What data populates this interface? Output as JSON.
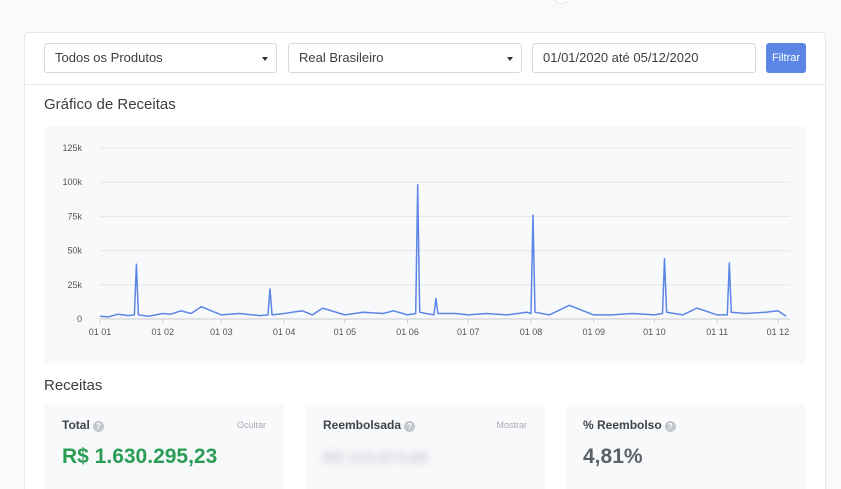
{
  "filters": {
    "product_select": "Todos os Produtos",
    "currency_select": "Real Brasileiro",
    "date_range": "01/01/2020 até 05/12/2020",
    "filter_button": "Filtrar"
  },
  "revenue_chart": {
    "heading": "Gráfico de Receitas"
  },
  "chart_data": {
    "type": "line",
    "title": "",
    "xlabel": "",
    "ylabel": "",
    "ylim": [
      0,
      125000
    ],
    "yticks": [
      0,
      25000,
      50000,
      75000,
      100000,
      125000
    ],
    "ytick_labels": [
      "0",
      "25k",
      "50k",
      "75k",
      "100k",
      "125k"
    ],
    "xtick_labels": [
      "01 01",
      "01 02",
      "01 03",
      "01 04",
      "01 05",
      "01 06",
      "01 07",
      "01 08",
      "01 09",
      "01 10",
      "01 11",
      "01 12"
    ],
    "xtick_dates": [
      "2020-01-01",
      "2020-02-01",
      "2020-03-01",
      "2020-04-01",
      "2020-05-01",
      "2020-06-01",
      "2020-07-01",
      "2020-08-01",
      "2020-09-01",
      "2020-10-01",
      "2020-11-01",
      "2020-12-01"
    ],
    "grid": true,
    "color": "#5b86e5",
    "series": [
      {
        "x": [
          "2020-01-01",
          "2020-01-05",
          "2020-01-10",
          "2020-01-15",
          "2020-01-18",
          "2020-01-19",
          "2020-01-20",
          "2020-01-25",
          "2020-02-01",
          "2020-02-05",
          "2020-02-10",
          "2020-02-15",
          "2020-02-20",
          "2020-03-01",
          "2020-03-10",
          "2020-03-20",
          "2020-03-24",
          "2020-03-25",
          "2020-03-26",
          "2020-04-01",
          "2020-04-10",
          "2020-04-15",
          "2020-04-20",
          "2020-05-01",
          "2020-05-10",
          "2020-05-20",
          "2020-05-25",
          "2020-06-01",
          "2020-06-05",
          "2020-06-06",
          "2020-06-07",
          "2020-06-10",
          "2020-06-14",
          "2020-06-15",
          "2020-06-16",
          "2020-06-25",
          "2020-07-01",
          "2020-07-10",
          "2020-07-20",
          "2020-07-30",
          "2020-08-01",
          "2020-08-02",
          "2020-08-03",
          "2020-08-10",
          "2020-08-20",
          "2020-09-01",
          "2020-09-10",
          "2020-09-20",
          "2020-10-01",
          "2020-10-05",
          "2020-10-06",
          "2020-10-07",
          "2020-10-15",
          "2020-10-22",
          "2020-11-01",
          "2020-11-06",
          "2020-11-07",
          "2020-11-08",
          "2020-11-15",
          "2020-11-25",
          "2020-12-01",
          "2020-12-05"
        ],
        "y": [
          2000,
          1500,
          3500,
          2500,
          3000,
          40000,
          3000,
          2000,
          4000,
          3500,
          6000,
          4000,
          9000,
          3000,
          4000,
          2500,
          3000,
          22000,
          3000,
          4000,
          6000,
          3000,
          8000,
          3000,
          5000,
          4000,
          6000,
          3000,
          4000,
          98000,
          5000,
          4000,
          3000,
          15000,
          4000,
          4000,
          3000,
          4000,
          3000,
          5000,
          4000,
          76000,
          5000,
          3000,
          10000,
          3000,
          3000,
          4000,
          3000,
          4000,
          44000,
          5000,
          3000,
          8000,
          3000,
          3000,
          41000,
          5000,
          4000,
          5000,
          6000,
          2000
        ]
      }
    ]
  },
  "receitas": {
    "heading": "Receitas",
    "cards": [
      {
        "label": "Total",
        "link": "Ocultar",
        "value": "R$ 1.630.295,23",
        "value_color": "#2a9d55"
      },
      {
        "label": "Reembolsada",
        "link": "Mostrar",
        "value": "R$ 123.874,88"
      },
      {
        "label": "% Reembolso",
        "link": "",
        "value": "4,81%"
      }
    ]
  }
}
